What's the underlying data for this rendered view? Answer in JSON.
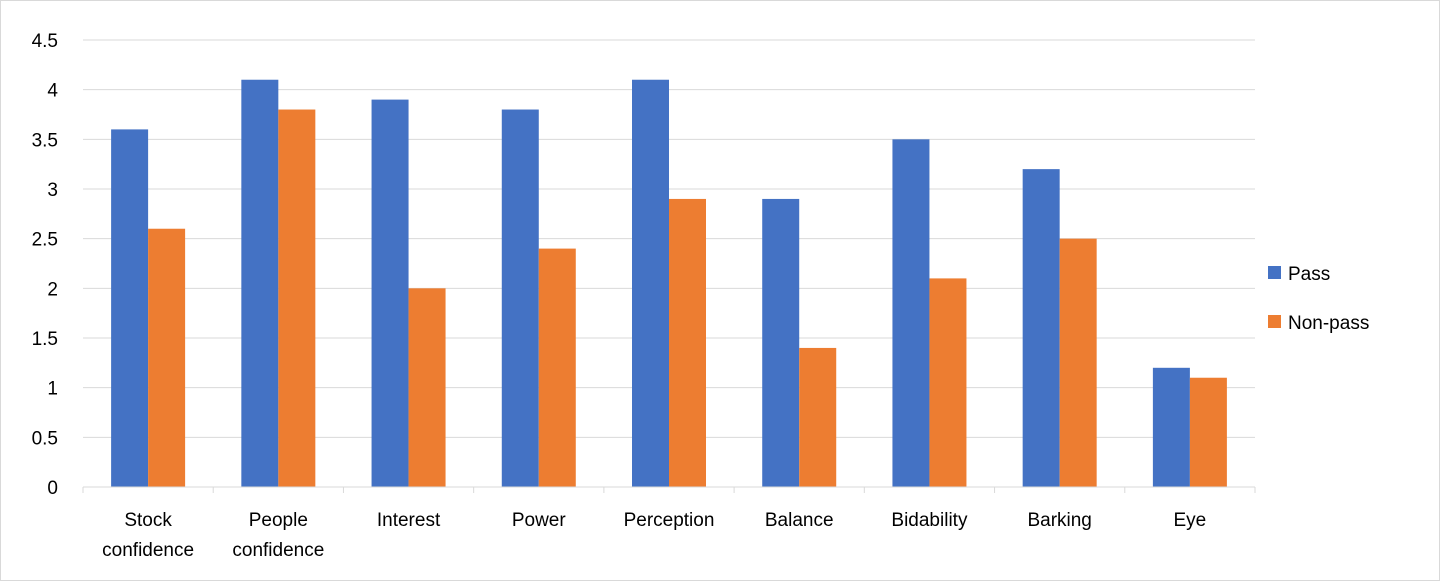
{
  "chart_data": {
    "type": "bar",
    "categories": [
      [
        "Stock",
        "confidence"
      ],
      [
        "People",
        "confidence"
      ],
      [
        "Interest"
      ],
      [
        "Power"
      ],
      [
        "Perception"
      ],
      [
        "Balance"
      ],
      [
        "Bidability"
      ],
      [
        "Barking"
      ],
      [
        "Eye"
      ]
    ],
    "series": [
      {
        "name": "Pass",
        "color": "#4472C4",
        "values": [
          3.6,
          4.1,
          3.9,
          3.8,
          4.1,
          2.9,
          3.5,
          3.2,
          1.2
        ]
      },
      {
        "name": "Non-pass",
        "color": "#ED7D31",
        "values": [
          2.6,
          3.8,
          2.0,
          2.4,
          2.9,
          1.4,
          2.1,
          2.5,
          1.1
        ]
      }
    ],
    "y_ticks": [
      "0",
      "0.5",
      "1",
      "1.5",
      "2",
      "2.5",
      "3",
      "3.5",
      "4",
      "4.5"
    ],
    "ylim": [
      0,
      4.5
    ],
    "grid": true,
    "legend_position": "right",
    "title": "",
    "xlabel": "",
    "ylabel": ""
  }
}
